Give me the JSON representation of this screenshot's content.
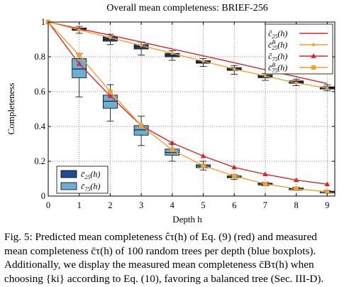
{
  "chart_data": {
    "type": "line",
    "title": "Overall mean completeness: BRIEF-256",
    "xlabel": "Depth h",
    "ylabel": "Completeness",
    "x": [
      0,
      1,
      2,
      3,
      4,
      5,
      6,
      7,
      8,
      9
    ],
    "xlim": [
      0,
      9.3
    ],
    "ylim": [
      0,
      1
    ],
    "x_ticks": [
      "0",
      "1",
      "2",
      "3",
      "4",
      "5",
      "6",
      "7",
      "8",
      "9"
    ],
    "y_ticks": [
      "0",
      "0.2",
      "0.4",
      "0.6",
      "0.8",
      "1"
    ],
    "y_tick_values": [
      0,
      0.2,
      0.4,
      0.6,
      0.8,
      1
    ],
    "grid": true,
    "legend_position": "top-right",
    "series": [
      {
        "name": "ĉ25(h)",
        "color": "#d62728",
        "marker": "none",
        "values": [
          1.0,
          0.962,
          0.924,
          0.885,
          0.845,
          0.806,
          0.766,
          0.726,
          0.686,
          0.646
        ]
      },
      {
        "name": "c̄B25(h)",
        "color": "#f0a030",
        "marker": "dot",
        "values": [
          1.0,
          0.955,
          0.91,
          0.865,
          0.82,
          0.775,
          0.73,
          0.69,
          0.65,
          0.62
        ]
      },
      {
        "name": "ĉ75(h)",
        "color": "#d62728",
        "marker": "triangle",
        "values": [
          1.0,
          0.76,
          0.575,
          0.405,
          0.305,
          0.23,
          0.165,
          0.125,
          0.092,
          0.068
        ]
      },
      {
        "name": "c̄B75(h)",
        "color": "#f0a030",
        "marker": "square",
        "values": [
          1.0,
          0.81,
          0.6,
          0.405,
          0.265,
          0.175,
          0.115,
          0.07,
          0.042,
          0.025
        ]
      }
    ],
    "boxplots": [
      {
        "name": "c̄25(h)",
        "color": "#1f4e8c",
        "boxes": [
          {
            "x": 0,
            "min": 1.0,
            "q1": 1.0,
            "median": 1.0,
            "q3": 1.0,
            "max": 1.0
          },
          {
            "x": 1,
            "min": 0.935,
            "q1": 0.952,
            "median": 0.958,
            "q3": 0.966,
            "max": 0.975
          },
          {
            "x": 2,
            "min": 0.87,
            "q1": 0.89,
            "median": 0.902,
            "q3": 0.915,
            "max": 0.93
          },
          {
            "x": 3,
            "min": 0.81,
            "q1": 0.845,
            "median": 0.858,
            "q3": 0.87,
            "max": 0.885
          },
          {
            "x": 4,
            "min": 0.78,
            "q1": 0.8,
            "median": 0.81,
            "q3": 0.82,
            "max": 0.835
          },
          {
            "x": 5,
            "min": 0.745,
            "q1": 0.763,
            "median": 0.77,
            "q3": 0.778,
            "max": 0.79
          },
          {
            "x": 6,
            "min": 0.7,
            "q1": 0.722,
            "median": 0.73,
            "q3": 0.738,
            "max": 0.75
          },
          {
            "x": 7,
            "min": 0.665,
            "q1": 0.68,
            "median": 0.688,
            "q3": 0.696,
            "max": 0.705
          },
          {
            "x": 8,
            "min": 0.635,
            "q1": 0.648,
            "median": 0.655,
            "q3": 0.662,
            "max": 0.672
          },
          {
            "x": 9,
            "min": 0.605,
            "q1": 0.615,
            "median": 0.622,
            "q3": 0.628,
            "max": 0.638
          }
        ]
      },
      {
        "name": "c̄75(h)",
        "color": "#6baed6",
        "boxes": [
          {
            "x": 0,
            "min": 1.0,
            "q1": 1.0,
            "median": 1.0,
            "q3": 1.0,
            "max": 1.0
          },
          {
            "x": 1,
            "min": 0.57,
            "q1": 0.68,
            "median": 0.73,
            "q3": 0.79,
            "max": 0.82
          },
          {
            "x": 2,
            "min": 0.43,
            "q1": 0.505,
            "median": 0.545,
            "q3": 0.58,
            "max": 0.64
          },
          {
            "x": 3,
            "min": 0.29,
            "q1": 0.35,
            "median": 0.38,
            "q3": 0.405,
            "max": 0.46
          },
          {
            "x": 4,
            "min": 0.2,
            "q1": 0.235,
            "median": 0.25,
            "q3": 0.27,
            "max": 0.3
          },
          {
            "x": 5,
            "min": 0.15,
            "q1": 0.163,
            "median": 0.172,
            "q3": 0.18,
            "max": 0.2
          },
          {
            "x": 6,
            "min": 0.095,
            "q1": 0.105,
            "median": 0.11,
            "q3": 0.116,
            "max": 0.125
          },
          {
            "x": 7,
            "min": 0.06,
            "q1": 0.066,
            "median": 0.07,
            "q3": 0.074,
            "max": 0.08
          },
          {
            "x": 8,
            "min": 0.036,
            "q1": 0.04,
            "median": 0.043,
            "q3": 0.046,
            "max": 0.05
          },
          {
            "x": 9,
            "min": 0.02,
            "q1": 0.024,
            "median": 0.026,
            "q3": 0.028,
            "max": 0.031
          }
        ]
      }
    ]
  },
  "legend_top": [
    {
      "base": "ĉ",
      "sub": "25",
      "sup": "",
      "arg": "(h)",
      "style": "line",
      "color": "#d62728"
    },
    {
      "base": "c̄",
      "sub": "25",
      "sup": "B",
      "arg": "(h)",
      "style": "dot",
      "color": "#f0a030"
    },
    {
      "base": "ĉ",
      "sub": "75",
      "sup": "",
      "arg": "(h)",
      "style": "triangle",
      "color": "#d62728"
    },
    {
      "base": "c̄",
      "sub": "75",
      "sup": "B",
      "arg": "(h)",
      "style": "square",
      "color": "#f0a030"
    }
  ],
  "legend_bottom": [
    {
      "base": "c̄",
      "sub": "25",
      "arg": "(h)",
      "color": "#1f4e8c"
    },
    {
      "base": "c̄",
      "sub": "75",
      "arg": "(h)",
      "color": "#6baed6"
    }
  ],
  "caption": {
    "l1": "Fig. 5: Predicted mean completeness ĉτ(h) of Eq. (9) (red) and measured",
    "l2": "mean completeness c̄τ(h) of 100 random trees per depth (blue boxplots).",
    "l3": "Additionally, we display the measured mean completeness c̄Bτ(h) when",
    "l4": "choosing {ki} according to Eq. (10), favoring a balanced tree (Sec. III-D)."
  }
}
